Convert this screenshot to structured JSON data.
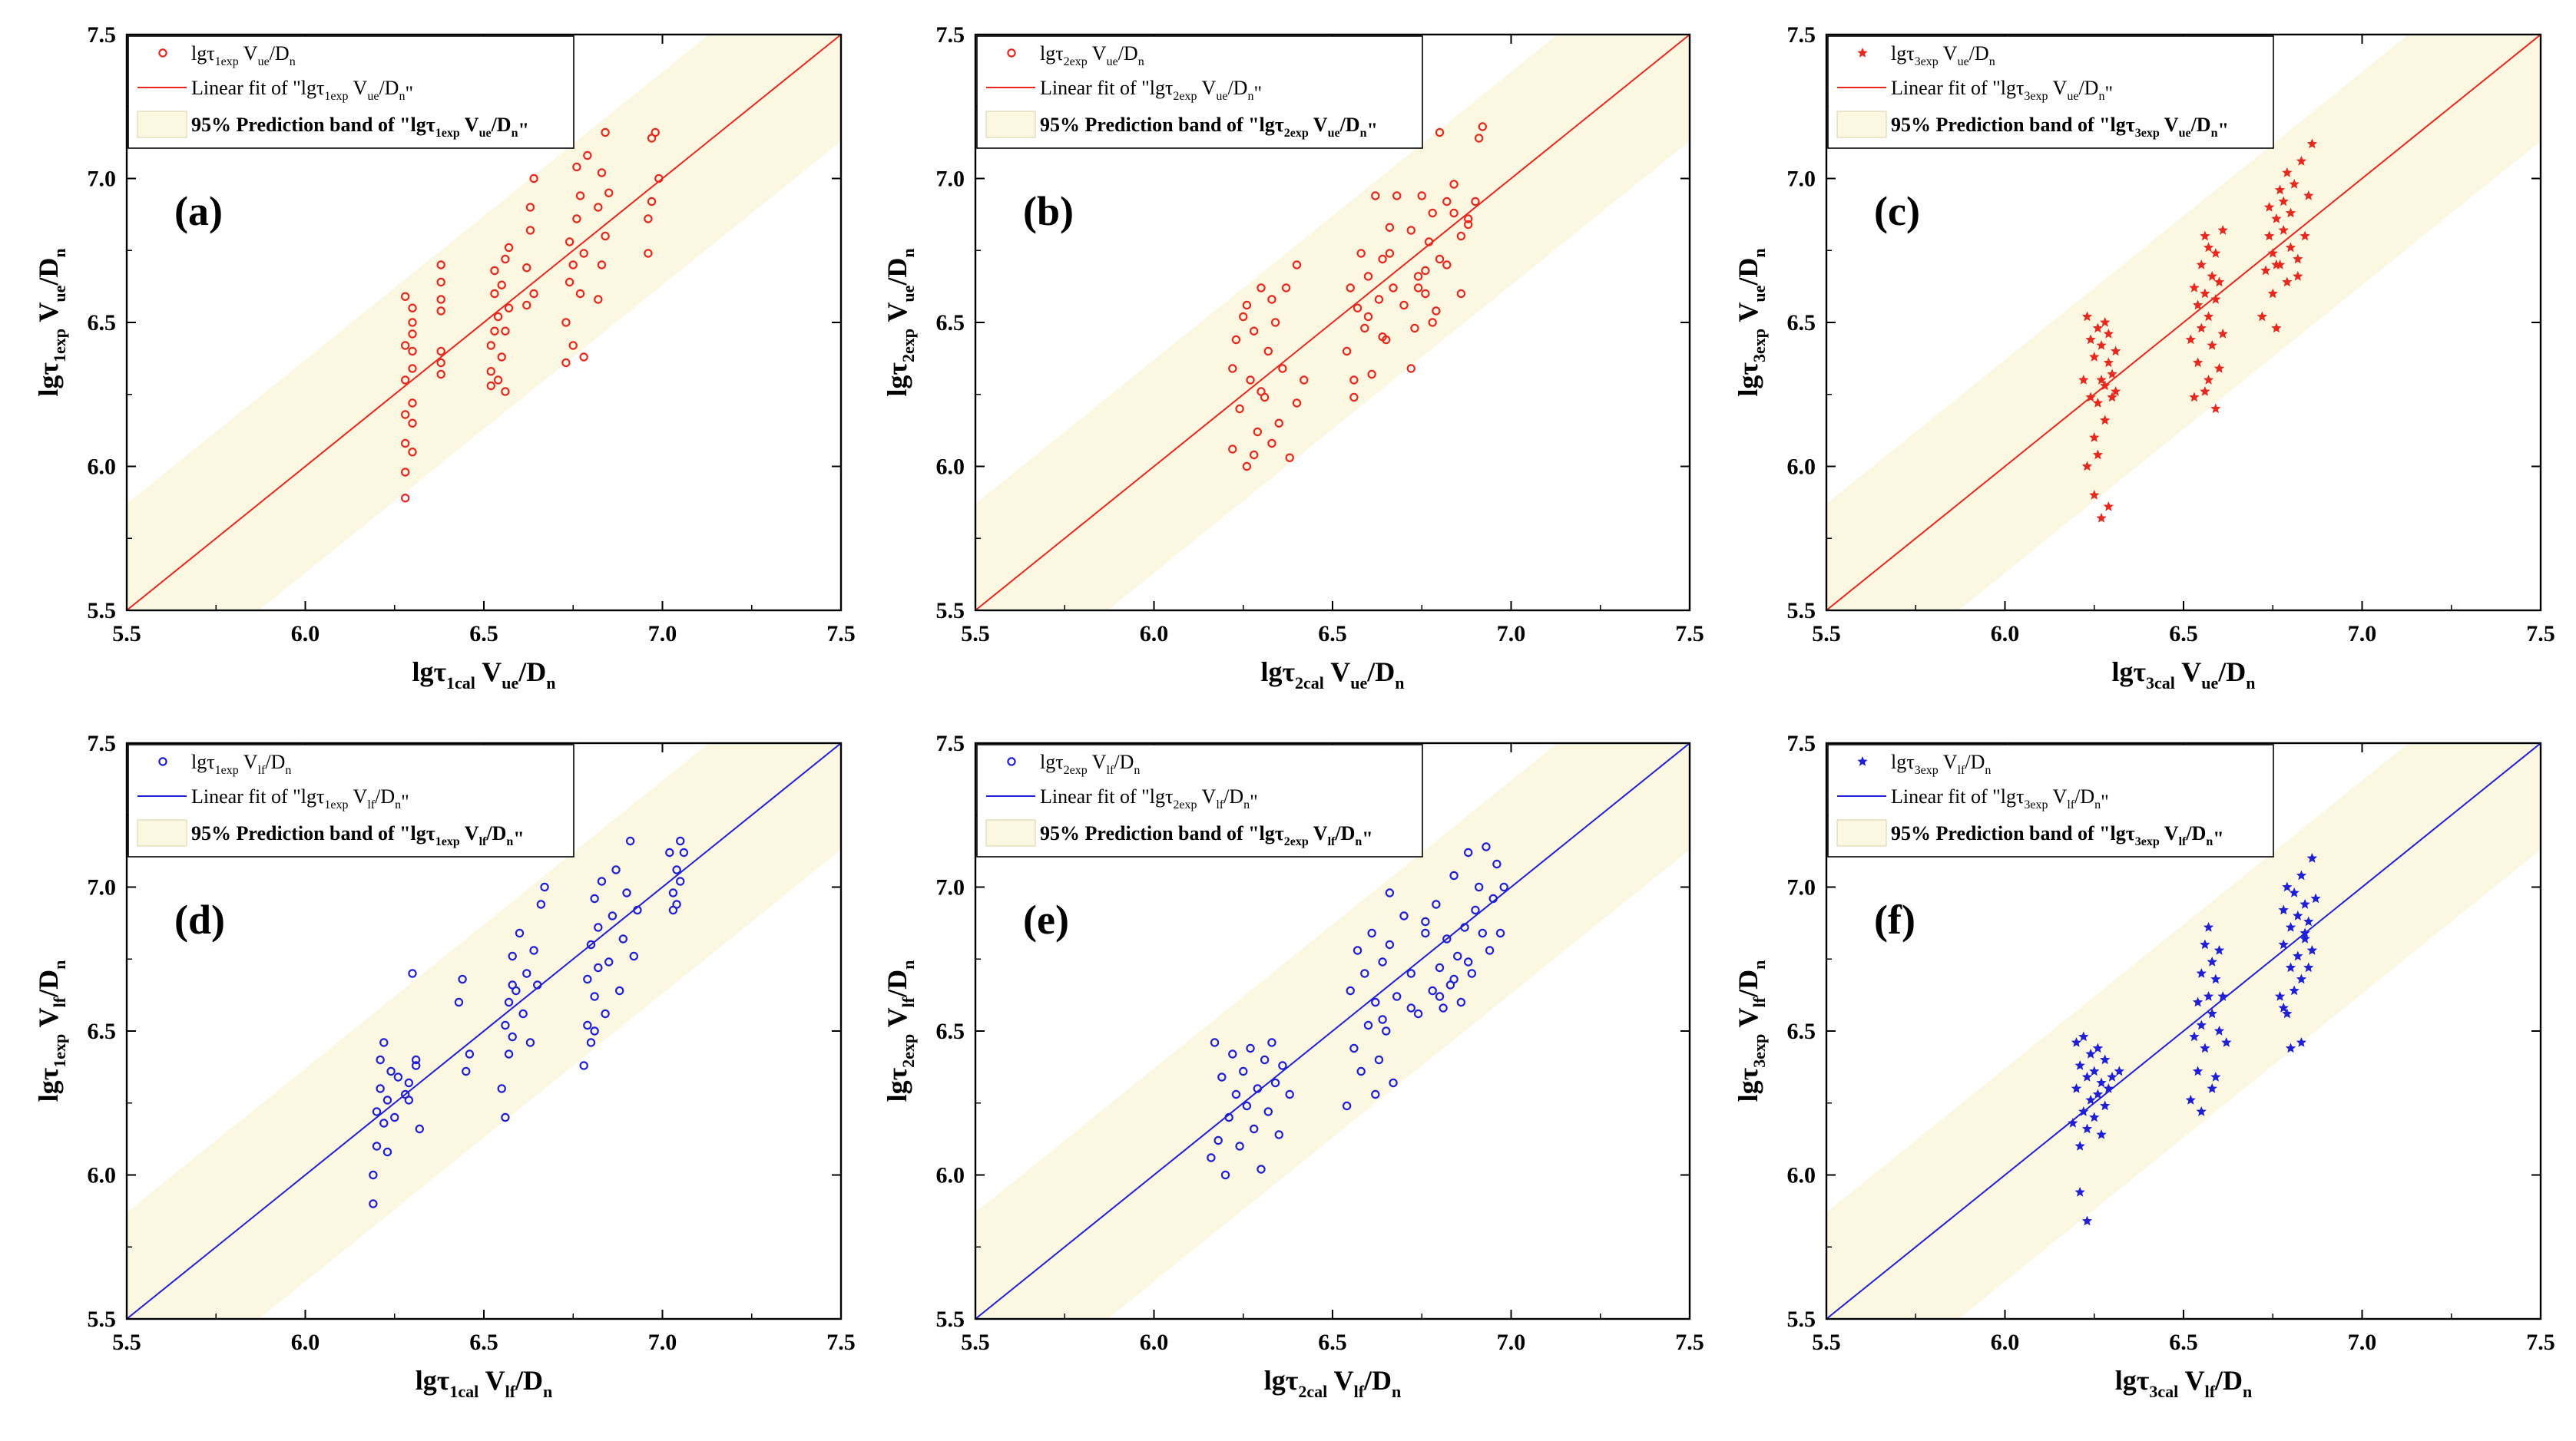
{
  "colors": {
    "red_series": "#e8281e",
    "blue_series": "#1f1fd6",
    "band_fill": "#fbf7e1",
    "axis": "#000000"
  },
  "axis_ticks": [
    "5.5",
    "6.0",
    "6.5",
    "7.0",
    "7.5"
  ],
  "chart_data": [
    {
      "id": "a",
      "type": "scatter",
      "color": "red",
      "marker": "circle",
      "panel_label": "(a)",
      "xlim": [
        5.5,
        7.5
      ],
      "ylim": [
        5.5,
        7.5
      ],
      "xlabel": "lgτ1cal Vue/Dn",
      "ylabel": "lgτ1exp Vue/Dn",
      "legend": [
        "lgτ1exp Vue/Dn",
        "Linear fit of \"lgτ1exp Vue/Dn\"",
        "95% Prediction band of \"lgτ1exp Vue/Dn\""
      ],
      "fit_line": [
        [
          5.5,
          5.5
        ],
        [
          7.5,
          7.5
        ]
      ],
      "band_halfwidth": 0.37,
      "x": [
        6.28,
        6.28,
        6.28,
        6.28,
        6.28,
        6.28,
        6.28,
        6.3,
        6.3,
        6.3,
        6.3,
        6.3,
        6.3,
        6.3,
        6.3,
        6.38,
        6.38,
        6.38,
        6.38,
        6.38,
        6.38,
        6.38,
        6.52,
        6.52,
        6.52,
        6.53,
        6.53,
        6.53,
        6.54,
        6.54,
        6.55,
        6.55,
        6.56,
        6.56,
        6.56,
        6.57,
        6.57,
        6.62,
        6.62,
        6.63,
        6.63,
        6.64,
        6.64,
        6.73,
        6.73,
        6.74,
        6.74,
        6.75,
        6.75,
        6.76,
        6.76,
        6.77,
        6.77,
        6.78,
        6.78,
        6.79,
        6.82,
        6.82,
        6.83,
        6.83,
        6.84,
        6.84,
        6.85,
        6.96,
        6.96,
        6.97,
        6.97,
        6.98,
        6.99
      ],
      "y": [
        5.89,
        5.98,
        6.08,
        6.18,
        6.3,
        6.42,
        6.59,
        6.05,
        6.15,
        6.22,
        6.34,
        6.4,
        6.46,
        6.5,
        6.55,
        6.32,
        6.36,
        6.4,
        6.54,
        6.58,
        6.64,
        6.7,
        6.28,
        6.33,
        6.42,
        6.47,
        6.6,
        6.68,
        6.3,
        6.52,
        6.38,
        6.63,
        6.26,
        6.47,
        6.72,
        6.55,
        6.76,
        6.56,
        6.69,
        6.82,
        6.9,
        6.6,
        7.0,
        6.36,
        6.5,
        6.64,
        6.78,
        6.42,
        6.7,
        6.86,
        7.04,
        6.6,
        6.94,
        6.38,
        6.74,
        7.08,
        6.58,
        6.9,
        6.7,
        7.02,
        6.8,
        7.16,
        6.95,
        6.74,
        6.86,
        6.92,
        7.14,
        7.16,
        7.0
      ]
    },
    {
      "id": "b",
      "type": "scatter",
      "color": "red",
      "marker": "circle",
      "panel_label": "(b)",
      "xlim": [
        5.5,
        7.5
      ],
      "ylim": [
        5.5,
        7.5
      ],
      "xlabel": "lgτ2cal Vue/Dn",
      "ylabel": "lgτ2exp Vue/Dn",
      "legend": [
        "lgτ2exp Vue/Dn",
        "Linear fit of \"lgτ2exp Vue/Dn\"",
        "95% Prediction band of \"lgτ2exp Vue/Dn\""
      ],
      "fit_line": [
        [
          5.5,
          5.5
        ],
        [
          7.5,
          7.5
        ]
      ],
      "band_halfwidth": 0.37,
      "x": [
        6.22,
        6.23,
        6.24,
        6.25,
        6.26,
        6.27,
        6.28,
        6.29,
        6.3,
        6.31,
        6.32,
        6.33,
        6.34,
        6.35,
        6.22,
        6.26,
        6.28,
        6.3,
        6.33,
        6.36,
        6.37,
        6.38,
        6.4,
        6.4,
        6.42,
        6.54,
        6.55,
        6.56,
        6.57,
        6.58,
        6.59,
        6.6,
        6.61,
        6.62,
        6.63,
        6.64,
        6.65,
        6.66,
        6.67,
        6.68,
        6.56,
        6.6,
        6.64,
        6.66,
        6.7,
        6.72,
        6.73,
        6.74,
        6.75,
        6.76,
        6.77,
        6.78,
        6.79,
        6.8,
        6.82,
        6.84,
        6.86,
        6.88,
        6.9,
        6.91,
        6.92,
        6.72,
        6.76,
        6.8,
        6.84,
        6.74,
        6.78,
        6.82,
        6.86,
        6.88
      ],
      "y": [
        6.06,
        6.44,
        6.2,
        6.52,
        6.0,
        6.3,
        6.47,
        6.12,
        6.62,
        6.24,
        6.4,
        6.08,
        6.5,
        6.15,
        6.34,
        6.56,
        6.04,
        6.26,
        6.58,
        6.34,
        6.62,
        6.03,
        6.22,
        6.7,
        6.3,
        6.4,
        6.62,
        6.24,
        6.55,
        6.74,
        6.48,
        6.66,
        6.32,
        6.94,
        6.58,
        6.72,
        6.44,
        6.83,
        6.62,
        6.94,
        6.3,
        6.52,
        6.45,
        6.74,
        6.56,
        6.82,
        6.48,
        6.66,
        6.94,
        6.6,
        6.78,
        6.88,
        6.54,
        6.72,
        6.92,
        6.98,
        6.8,
        6.86,
        6.92,
        7.14,
        7.18,
        6.34,
        6.68,
        7.16,
        6.88,
        6.62,
        6.5,
        6.7,
        6.6,
        6.84
      ]
    },
    {
      "id": "c",
      "type": "scatter",
      "color": "red",
      "marker": "star",
      "panel_label": "(c)",
      "xlim": [
        5.5,
        7.5
      ],
      "ylim": [
        5.5,
        7.5
      ],
      "xlabel": "lgτ3cal Vue/Dn",
      "ylabel": "lgτ3exp Vue/Dn",
      "legend": [
        "lgτ3exp Vue/Dn",
        "Linear fit of \"lgτ3exp Vue/Dn\"",
        "95% Prediction band of \"lgτ3exp Vue/Dn\""
      ],
      "fit_line": [
        [
          5.5,
          5.5
        ],
        [
          7.5,
          7.5
        ]
      ],
      "band_halfwidth": 0.37,
      "x": [
        6.22,
        6.23,
        6.24,
        6.24,
        6.25,
        6.25,
        6.26,
        6.26,
        6.27,
        6.27,
        6.28,
        6.28,
        6.29,
        6.29,
        6.3,
        6.3,
        6.31,
        6.31,
        6.23,
        6.25,
        6.27,
        6.29,
        6.26,
        6.28,
        6.52,
        6.53,
        6.54,
        6.54,
        6.55,
        6.55,
        6.56,
        6.56,
        6.57,
        6.57,
        6.58,
        6.58,
        6.59,
        6.59,
        6.6,
        6.6,
        6.61,
        6.61,
        6.53,
        6.56,
        6.59,
        6.57,
        6.72,
        6.73,
        6.74,
        6.74,
        6.75,
        6.75,
        6.76,
        6.76,
        6.77,
        6.77,
        6.78,
        6.78,
        6.79,
        6.79,
        6.8,
        6.8,
        6.81,
        6.82,
        6.83,
        6.84,
        6.85,
        6.86,
        6.82,
        6.76
      ],
      "y": [
        6.3,
        6.52,
        6.24,
        6.44,
        6.1,
        6.38,
        6.48,
        6.22,
        6.3,
        6.42,
        6.16,
        6.28,
        6.36,
        6.46,
        6.24,
        6.32,
        6.4,
        6.26,
        6.0,
        5.9,
        5.82,
        5.86,
        6.04,
        6.5,
        6.44,
        6.62,
        6.36,
        6.56,
        6.7,
        6.48,
        6.6,
        6.8,
        6.3,
        6.52,
        6.66,
        6.42,
        6.74,
        6.58,
        6.34,
        6.64,
        6.82,
        6.46,
        6.24,
        6.26,
        6.2,
        6.76,
        6.52,
        6.68,
        6.8,
        6.9,
        6.6,
        6.74,
        6.86,
        6.48,
        6.96,
        6.7,
        6.82,
        6.92,
        6.64,
        7.02,
        6.76,
        6.88,
        6.98,
        6.72,
        7.06,
        6.8,
        6.94,
        7.12,
        6.66,
        6.7
      ]
    },
    {
      "id": "d",
      "type": "scatter",
      "color": "blue",
      "marker": "circle",
      "panel_label": "(d)",
      "xlim": [
        5.5,
        7.5
      ],
      "ylim": [
        5.5,
        7.5
      ],
      "xlabel": "lgτ1cal Vlf/Dn",
      "ylabel": "lgτ1exp Vlf/Dn",
      "legend": [
        "lgτ1exp Vlf/Dn",
        "Linear fit of \"lgτ1exp Vlf/Dn\"",
        "95% Prediction band of \"lgτ1exp Vlf/Dn\""
      ],
      "fit_line": [
        [
          5.5,
          5.5
        ],
        [
          7.5,
          7.5
        ]
      ],
      "band_halfwidth": 0.37,
      "x": [
        6.19,
        6.19,
        6.2,
        6.2,
        6.21,
        6.21,
        6.22,
        6.22,
        6.23,
        6.23,
        6.24,
        6.25,
        6.26,
        6.28,
        6.29,
        6.3,
        6.31,
        6.32,
        6.29,
        6.31,
        6.43,
        6.44,
        6.45,
        6.46,
        6.55,
        6.56,
        6.56,
        6.57,
        6.57,
        6.58,
        6.58,
        6.59,
        6.6,
        6.61,
        6.62,
        6.63,
        6.64,
        6.65,
        6.66,
        6.67,
        6.78,
        6.79,
        6.79,
        6.8,
        6.8,
        6.81,
        6.81,
        6.82,
        6.82,
        6.83,
        6.84,
        6.85,
        6.86,
        6.87,
        6.88,
        6.89,
        6.9,
        6.91,
        6.92,
        6.93,
        7.02,
        7.03,
        7.03,
        7.04,
        7.04,
        7.05,
        7.05,
        7.06,
        6.81,
        6.58
      ],
      "y": [
        5.9,
        6.0,
        6.1,
        6.22,
        6.3,
        6.4,
        6.18,
        6.46,
        6.08,
        6.26,
        6.36,
        6.2,
        6.34,
        6.28,
        6.32,
        6.7,
        6.4,
        6.16,
        6.26,
        6.38,
        6.6,
        6.68,
        6.36,
        6.42,
        6.3,
        6.52,
        6.2,
        6.6,
        6.42,
        6.76,
        6.48,
        6.64,
        6.84,
        6.56,
        6.7,
        6.46,
        6.78,
        6.66,
        6.94,
        7.0,
        6.38,
        6.52,
        6.68,
        6.8,
        6.46,
        6.62,
        6.96,
        6.72,
        6.86,
        7.02,
        6.56,
        6.74,
        6.9,
        7.06,
        6.64,
        6.82,
        6.98,
        7.16,
        6.76,
        6.92,
        7.12,
        6.98,
        6.92,
        7.06,
        6.94,
        7.16,
        7.02,
        7.12,
        6.5,
        6.66
      ]
    },
    {
      "id": "e",
      "type": "scatter",
      "color": "blue",
      "marker": "circle",
      "panel_label": "(e)",
      "xlim": [
        5.5,
        7.5
      ],
      "ylim": [
        5.5,
        7.5
      ],
      "xlabel": "lgτ2cal Vlf/Dn",
      "ylabel": "lgτ2exp Vlf/Dn",
      "legend": [
        "lgτ2exp Vlf/Dn",
        "Linear fit of \"lgτ2exp Vlf/Dn\"",
        "95% Prediction band of \"lgτ2exp Vlf/Dn\""
      ],
      "fit_line": [
        [
          5.5,
          5.5
        ],
        [
          7.5,
          7.5
        ]
      ],
      "band_halfwidth": 0.37,
      "x": [
        6.16,
        6.17,
        6.18,
        6.19,
        6.2,
        6.21,
        6.22,
        6.23,
        6.24,
        6.25,
        6.26,
        6.27,
        6.28,
        6.29,
        6.3,
        6.31,
        6.32,
        6.33,
        6.34,
        6.35,
        6.36,
        6.38,
        6.54,
        6.55,
        6.56,
        6.57,
        6.58,
        6.59,
        6.6,
        6.61,
        6.62,
        6.63,
        6.64,
        6.65,
        6.66,
        6.67,
        6.68,
        6.7,
        6.72,
        6.74,
        6.76,
        6.78,
        6.79,
        6.8,
        6.81,
        6.82,
        6.83,
        6.84,
        6.85,
        6.86,
        6.87,
        6.88,
        6.89,
        6.9,
        6.91,
        6.92,
        6.93,
        6.94,
        6.95,
        6.96,
        6.97,
        6.98,
        6.62,
        6.66,
        6.72,
        6.76,
        6.8,
        6.84,
        6.88,
        6.64
      ],
      "y": [
        6.06,
        6.46,
        6.12,
        6.34,
        6.0,
        6.2,
        6.42,
        6.28,
        6.1,
        6.36,
        6.24,
        6.44,
        6.16,
        6.3,
        6.02,
        6.4,
        6.22,
        6.46,
        6.32,
        6.14,
        6.38,
        6.28,
        6.24,
        6.64,
        6.44,
        6.78,
        6.36,
        6.7,
        6.52,
        6.84,
        6.6,
        6.4,
        6.74,
        6.5,
        6.8,
        6.32,
        6.62,
        6.9,
        6.7,
        6.56,
        6.88,
        6.64,
        6.94,
        6.72,
        6.58,
        6.82,
        6.66,
        7.04,
        6.76,
        6.6,
        6.86,
        7.12,
        6.7,
        6.92,
        7.0,
        6.84,
        7.14,
        6.78,
        6.96,
        7.08,
        6.84,
        7.0,
        6.28,
        6.98,
        6.58,
        6.84,
        6.62,
        6.68,
        6.74,
        6.54
      ]
    },
    {
      "id": "f",
      "type": "scatter",
      "color": "blue",
      "marker": "star",
      "panel_label": "(f)",
      "xlim": [
        5.5,
        7.5
      ],
      "ylim": [
        5.5,
        7.5
      ],
      "xlabel": "lgτ3cal Vlf/Dn",
      "ylabel": "lgτ3exp Vlf/Dn",
      "legend": [
        "lgτ3exp Vlf/Dn",
        "Linear fit of \"lgτ3exp Vlf/Dn\"",
        "95% Prediction band of \"lgτ3exp Vlf/Dn\""
      ],
      "fit_line": [
        [
          5.5,
          5.5
        ],
        [
          7.5,
          7.5
        ]
      ],
      "band_halfwidth": 0.37,
      "x": [
        6.19,
        6.2,
        6.2,
        6.21,
        6.21,
        6.22,
        6.22,
        6.23,
        6.23,
        6.24,
        6.24,
        6.25,
        6.25,
        6.26,
        6.26,
        6.27,
        6.27,
        6.28,
        6.28,
        6.29,
        6.3,
        6.32,
        6.21,
        6.23,
        6.52,
        6.53,
        6.54,
        6.54,
        6.55,
        6.55,
        6.56,
        6.56,
        6.57,
        6.57,
        6.58,
        6.58,
        6.59,
        6.59,
        6.6,
        6.6,
        6.61,
        6.62,
        6.55,
        6.58,
        6.77,
        6.78,
        6.78,
        6.79,
        6.79,
        6.8,
        6.8,
        6.81,
        6.81,
        6.82,
        6.82,
        6.83,
        6.83,
        6.84,
        6.84,
        6.85,
        6.85,
        6.86,
        6.86,
        6.87,
        6.8,
        6.83,
        6.78,
        6.84
      ],
      "y": [
        6.18,
        6.46,
        6.3,
        6.1,
        6.38,
        6.22,
        6.48,
        6.34,
        6.16,
        6.26,
        6.42,
        6.2,
        6.36,
        6.28,
        6.44,
        6.14,
        6.32,
        6.24,
        6.4,
        6.3,
        6.34,
        6.36,
        5.94,
        5.84,
        6.26,
        6.48,
        6.6,
        6.36,
        6.7,
        6.52,
        6.8,
        6.44,
        6.62,
        6.86,
        6.56,
        6.74,
        6.34,
        6.68,
        6.5,
        6.78,
        6.62,
        6.46,
        6.22,
        6.3,
        6.62,
        6.8,
        6.92,
        6.56,
        7.0,
        6.72,
        6.86,
        6.64,
        6.98,
        6.76,
        6.9,
        6.68,
        7.04,
        6.82,
        6.94,
        6.72,
        6.88,
        7.1,
        6.78,
        6.96,
        6.44,
        6.46,
        6.58,
        6.84
      ]
    }
  ]
}
